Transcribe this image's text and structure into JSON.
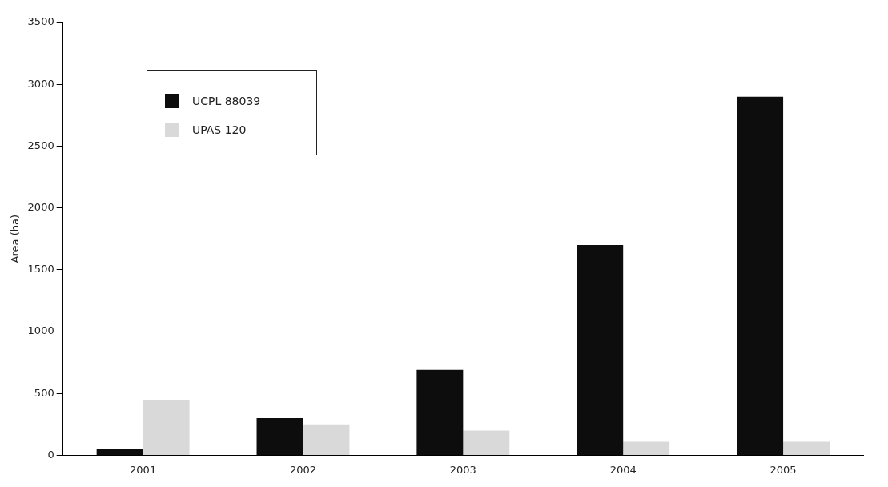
{
  "chart_data": {
    "type": "bar",
    "ylabel": "Area (ha)",
    "categories": [
      "2001",
      "2002",
      "2003",
      "2004",
      "2005"
    ],
    "series": [
      {
        "name": "UCPL 88039",
        "color": "#0d0d0d",
        "values": [
          50,
          300,
          690,
          1700,
          2900
        ]
      },
      {
        "name": "UPAS 120",
        "color": "#d9d9da",
        "values": [
          450,
          250,
          200,
          110,
          110
        ]
      }
    ],
    "ylim": [
      0,
      3500
    ],
    "yticks": [
      0,
      500,
      1000,
      1500,
      2000,
      2500,
      3000,
      3500
    ],
    "grid": false,
    "legend": "top left"
  }
}
